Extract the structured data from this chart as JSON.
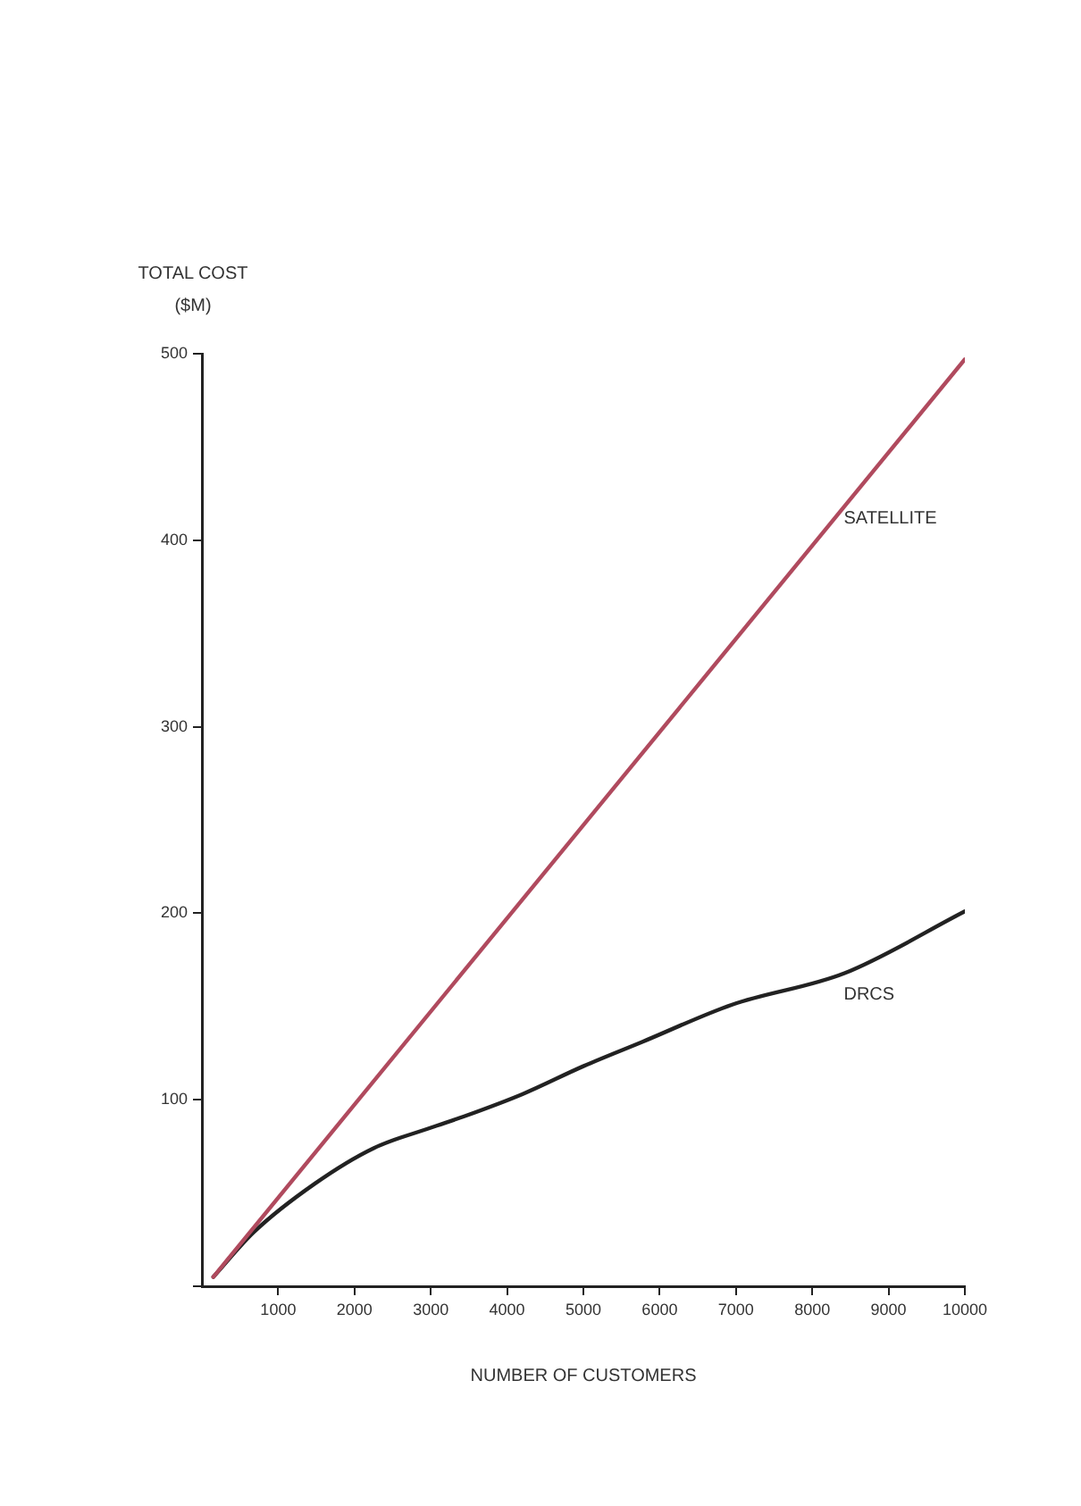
{
  "chart_data": {
    "type": "line",
    "xlabel": "NUMBER OF CUSTOMERS",
    "ylabel": "TOTAL COST\n($M)",
    "xlim": [
      0,
      10000
    ],
    "xticks": [
      1000,
      2000,
      3000,
      4000,
      5000,
      6000,
      7000,
      8000,
      9000,
      10000
    ],
    "ylim": [
      0,
      500
    ],
    "yticks": [
      {
        "value": 0,
        "label": null
      },
      100,
      200,
      300,
      400,
      500
    ],
    "grid": false,
    "legend": false,
    "marker": "none",
    "line_style": "solid",
    "series": [
      {
        "name": "SATELLITE",
        "color": "#b04a5e",
        "x": [
          150,
          10000
        ],
        "values": [
          5,
          497
        ]
      },
      {
        "name": "DRCS",
        "color": "#222222",
        "x": [
          150,
          680,
          1480,
          2250,
          3000,
          3430,
          4200,
          5000,
          5770,
          6950,
          8430,
          10000
        ],
        "values": [
          5,
          29,
          55,
          74,
          85,
          91,
          103,
          118,
          131,
          151,
          168,
          201
        ]
      }
    ]
  }
}
